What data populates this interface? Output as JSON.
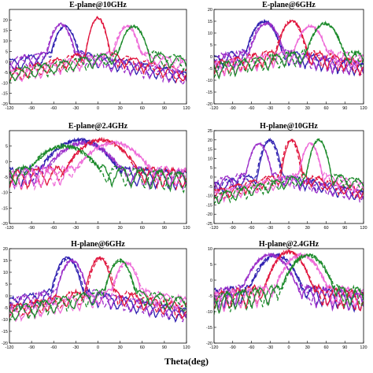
{
  "figure": {
    "xlabel": "Theta(deg)"
  },
  "colors": {
    "series": [
      "#2e1fb0",
      "#9b2fc9",
      "#e0143c",
      "#ee6ad8",
      "#1b8a2a"
    ]
  },
  "chart_data": [
    {
      "type": "line",
      "title": "E-plane@10GHz",
      "xlim": [
        -120,
        120
      ],
      "ylim": [
        -20,
        25
      ],
      "xticks": [
        -120,
        -90,
        -60,
        -30,
        0,
        30,
        60,
        90,
        120
      ],
      "yticks": [
        -20,
        -15,
        -10,
        -5,
        0,
        5,
        10,
        15,
        20
      ],
      "beams": [
        {
          "color": 0,
          "peak_deg": -45,
          "peak": 17,
          "width": 18
        },
        {
          "color": 1,
          "peak_deg": -50,
          "peak": 18,
          "width": 18
        },
        {
          "color": 2,
          "peak_deg": 0,
          "peak": 21,
          "width": 14
        },
        {
          "color": 3,
          "peak_deg": 40,
          "peak": 17,
          "width": 18
        },
        {
          "color": 4,
          "peak_deg": 48,
          "peak": 17,
          "width": 20
        }
      ]
    },
    {
      "type": "line",
      "title": "E-plane@6GHz",
      "xlim": [
        -120,
        120
      ],
      "ylim": [
        -20,
        20
      ],
      "xticks": [
        -120,
        -90,
        -60,
        -30,
        0,
        30,
        60,
        90,
        120
      ],
      "yticks": [
        -20,
        -15,
        -10,
        -5,
        0,
        5,
        10,
        15,
        20
      ],
      "beams": [
        {
          "color": 0,
          "peak_deg": -40,
          "peak": 15,
          "width": 28
        },
        {
          "color": 1,
          "peak_deg": -35,
          "peak": 14,
          "width": 28
        },
        {
          "color": 2,
          "peak_deg": 5,
          "peak": 15,
          "width": 24
        },
        {
          "color": 3,
          "peak_deg": 35,
          "peak": 13,
          "width": 28
        },
        {
          "color": 4,
          "peak_deg": 58,
          "peak": 14,
          "width": 30
        }
      ]
    },
    {
      "type": "line",
      "title": "E-plane@2.4GHz",
      "xlim": [
        -120,
        120
      ],
      "ylim": [
        -20,
        10
      ],
      "xticks": [
        -120,
        -90,
        -60,
        -30,
        0,
        30,
        60,
        90,
        120
      ],
      "yticks": [
        -20,
        -15,
        -10,
        -5,
        0,
        5
      ],
      "beams": [
        {
          "color": 0,
          "peak_deg": -25,
          "peak": 7,
          "width": 60
        },
        {
          "color": 1,
          "peak_deg": -20,
          "peak": 6,
          "width": 60
        },
        {
          "color": 2,
          "peak_deg": 5,
          "peak": 7,
          "width": 55
        },
        {
          "color": 3,
          "peak_deg": 20,
          "peak": 6,
          "width": 60
        },
        {
          "color": 4,
          "peak_deg": -45,
          "peak": 5,
          "width": 60
        }
      ]
    },
    {
      "type": "line",
      "title": "H-plane@10GHz",
      "xlim": [
        -120,
        120
      ],
      "ylim": [
        -25,
        25
      ],
      "xticks": [
        -120,
        -90,
        -60,
        -30,
        0,
        30,
        60,
        90,
        120
      ],
      "yticks": [
        -25,
        -20,
        -15,
        -10,
        -5,
        0,
        5,
        10,
        15,
        20,
        25
      ],
      "beams": [
        {
          "color": 0,
          "peak_deg": -30,
          "peak": 20,
          "width": 16
        },
        {
          "color": 1,
          "peak_deg": -48,
          "peak": 18,
          "width": 18
        },
        {
          "color": 2,
          "peak_deg": 5,
          "peak": 20,
          "width": 14
        },
        {
          "color": 3,
          "peak_deg": 35,
          "peak": 18,
          "width": 16
        },
        {
          "color": 4,
          "peak_deg": 48,
          "peak": 20,
          "width": 16
        }
      ]
    },
    {
      "type": "line",
      "title": "H-plane@6GHz",
      "xlim": [
        -120,
        120
      ],
      "ylim": [
        -20,
        20
      ],
      "xticks": [
        -120,
        -90,
        -60,
        -30,
        0,
        30,
        60,
        90,
        120
      ],
      "yticks": [
        -20,
        -15,
        -10,
        -5,
        0,
        5,
        10,
        15,
        20
      ],
      "beams": [
        {
          "color": 0,
          "peak_deg": -42,
          "peak": 16,
          "width": 20
        },
        {
          "color": 1,
          "peak_deg": -35,
          "peak": 15,
          "width": 20
        },
        {
          "color": 2,
          "peak_deg": 2,
          "peak": 16,
          "width": 18
        },
        {
          "color": 3,
          "peak_deg": 38,
          "peak": 14,
          "width": 20
        },
        {
          "color": 4,
          "peak_deg": 30,
          "peak": 15,
          "width": 20
        }
      ]
    },
    {
      "type": "line",
      "title": "H-plane@2.4GHz",
      "xlim": [
        -120,
        120
      ],
      "ylim": [
        -20,
        10
      ],
      "xticks": [
        -120,
        -90,
        -60,
        -30,
        0,
        30,
        60,
        90,
        120
      ],
      "yticks": [
        -20,
        -15,
        -10,
        -5,
        0,
        5,
        10
      ],
      "beams": [
        {
          "color": 0,
          "peak_deg": -20,
          "peak": 8,
          "width": 45
        },
        {
          "color": 1,
          "peak_deg": -30,
          "peak": 8,
          "width": 48
        },
        {
          "color": 2,
          "peak_deg": 0,
          "peak": 9,
          "width": 40
        },
        {
          "color": 3,
          "peak_deg": 20,
          "peak": 8,
          "width": 45
        },
        {
          "color": 4,
          "peak_deg": 30,
          "peak": 8,
          "width": 45
        }
      ]
    }
  ]
}
